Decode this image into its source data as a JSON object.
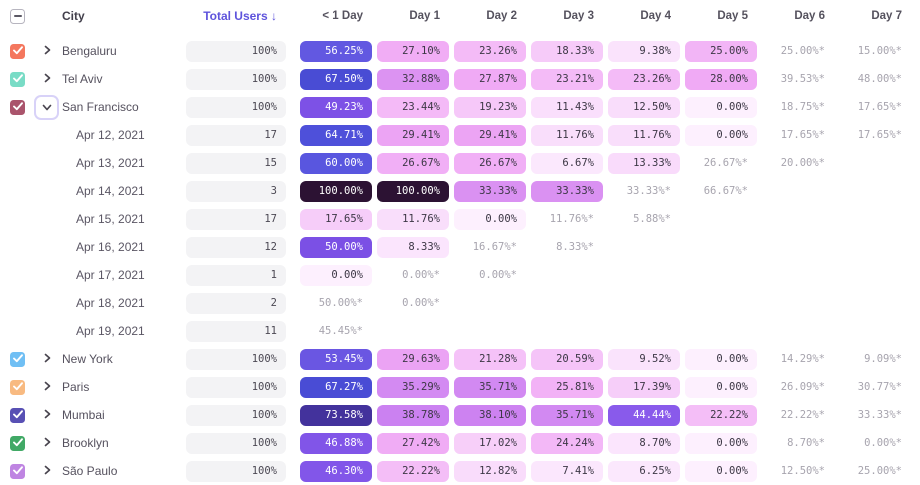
{
  "header": {
    "city_label": "City",
    "total_users_label": "Total Users ↓",
    "day_columns": [
      "< 1 Day",
      "Day 1",
      "Day 2",
      "Day 3",
      "Day 4",
      "Day 5",
      "Day 6",
      "Day 7"
    ]
  },
  "colors": {
    "sort_header_accent": "#5e53dc",
    "estimate_text": "#a7a4ae",
    "pill_background": "#f3f3f5",
    "focus_ring": "#d8d2f8",
    "scale_low": "#fdf0fe",
    "scale_mid": "#8558ea",
    "scale_high": "#2c1233"
  },
  "rows": [
    {
      "kind": "city",
      "label": "Bengaluru",
      "checkbox_color": "#f4775e",
      "chevron": "right",
      "total": "100%",
      "cells": [
        {
          "text": "56.25%",
          "pct": 56.25,
          "est": false
        },
        {
          "text": "27.10%",
          "pct": 27.1,
          "est": false
        },
        {
          "text": "23.26%",
          "pct": 23.26,
          "est": false
        },
        {
          "text": "18.33%",
          "pct": 18.33,
          "est": false
        },
        {
          "text": "9.38%",
          "pct": 9.38,
          "est": false
        },
        {
          "text": "25.00%",
          "pct": 25.0,
          "est": false
        },
        {
          "text": "25.00%*",
          "pct": 25.0,
          "est": true
        },
        {
          "text": "15.00%*",
          "pct": 15.0,
          "est": true
        }
      ]
    },
    {
      "kind": "city",
      "label": "Tel Aviv",
      "checkbox_color": "#79dcc6",
      "chevron": "right",
      "total": "100%",
      "cells": [
        {
          "text": "67.50%",
          "pct": 67.5,
          "est": false
        },
        {
          "text": "32.88%",
          "pct": 32.88,
          "est": false
        },
        {
          "text": "27.87%",
          "pct": 27.87,
          "est": false
        },
        {
          "text": "23.21%",
          "pct": 23.21,
          "est": false
        },
        {
          "text": "23.26%",
          "pct": 23.26,
          "est": false
        },
        {
          "text": "28.00%",
          "pct": 28.0,
          "est": false
        },
        {
          "text": "39.53%*",
          "pct": 39.53,
          "est": true
        },
        {
          "text": "48.00%*",
          "pct": 48.0,
          "est": true
        }
      ]
    },
    {
      "kind": "city",
      "label": "San Francisco",
      "checkbox_color": "#aa546c",
      "chevron": "down-focused",
      "total": "100%",
      "cells": [
        {
          "text": "49.23%",
          "pct": 49.23,
          "est": false
        },
        {
          "text": "23.44%",
          "pct": 23.44,
          "est": false
        },
        {
          "text": "19.23%",
          "pct": 19.23,
          "est": false
        },
        {
          "text": "11.43%",
          "pct": 11.43,
          "est": false
        },
        {
          "text": "12.50%",
          "pct": 12.5,
          "est": false
        },
        {
          "text": "0.00%",
          "pct": 0,
          "est": false
        },
        {
          "text": "18.75%*",
          "pct": 18.75,
          "est": true
        },
        {
          "text": "17.65%*",
          "pct": 17.65,
          "est": true
        }
      ]
    },
    {
      "kind": "date",
      "label": "Apr 12, 2021",
      "total": "17",
      "cells": [
        {
          "text": "64.71%",
          "pct": 64.71,
          "est": false
        },
        {
          "text": "29.41%",
          "pct": 29.41,
          "est": false
        },
        {
          "text": "29.41%",
          "pct": 29.41,
          "est": false
        },
        {
          "text": "11.76%",
          "pct": 11.76,
          "est": false
        },
        {
          "text": "11.76%",
          "pct": 11.76,
          "est": false
        },
        {
          "text": "0.00%",
          "pct": 0,
          "est": false
        },
        {
          "text": "17.65%*",
          "pct": 17.65,
          "est": true
        },
        {
          "text": "17.65%*",
          "pct": 17.65,
          "est": true
        }
      ]
    },
    {
      "kind": "date",
      "label": "Apr 13, 2021",
      "total": "15",
      "cells": [
        {
          "text": "60.00%",
          "pct": 60.0,
          "est": false
        },
        {
          "text": "26.67%",
          "pct": 26.67,
          "est": false
        },
        {
          "text": "26.67%",
          "pct": 26.67,
          "est": false
        },
        {
          "text": "6.67%",
          "pct": 6.67,
          "est": false
        },
        {
          "text": "13.33%",
          "pct": 13.33,
          "est": false
        },
        {
          "text": "26.67%*",
          "pct": 26.67,
          "est": true
        },
        {
          "text": "20.00%*",
          "pct": 20.0,
          "est": true
        },
        null
      ]
    },
    {
      "kind": "date",
      "label": "Apr 14, 2021",
      "total": "3",
      "cells": [
        {
          "text": "100.00%",
          "pct": 100,
          "est": false
        },
        {
          "text": "100.00%",
          "pct": 100,
          "est": false
        },
        {
          "text": "33.33%",
          "pct": 33.33,
          "est": false
        },
        {
          "text": "33.33%",
          "pct": 33.33,
          "est": false
        },
        {
          "text": "33.33%*",
          "pct": 33.33,
          "est": true
        },
        {
          "text": "66.67%*",
          "pct": 66.67,
          "est": true
        },
        null,
        null
      ]
    },
    {
      "kind": "date",
      "label": "Apr 15, 2021",
      "total": "17",
      "cells": [
        {
          "text": "17.65%",
          "pct": 17.65,
          "est": false
        },
        {
          "text": "11.76%",
          "pct": 11.76,
          "est": false
        },
        {
          "text": "0.00%",
          "pct": 0,
          "est": false
        },
        {
          "text": "11.76%*",
          "pct": 11.76,
          "est": true
        },
        {
          "text": "5.88%*",
          "pct": 5.88,
          "est": true
        },
        null,
        null,
        null
      ]
    },
    {
      "kind": "date",
      "label": "Apr 16, 2021",
      "total": "12",
      "cells": [
        {
          "text": "50.00%",
          "pct": 50.0,
          "est": false
        },
        {
          "text": "8.33%",
          "pct": 8.33,
          "est": false
        },
        {
          "text": "16.67%*",
          "pct": 16.67,
          "est": true
        },
        {
          "text": "8.33%*",
          "pct": 8.33,
          "est": true
        },
        null,
        null,
        null,
        null
      ]
    },
    {
      "kind": "date",
      "label": "Apr 17, 2021",
      "total": "1",
      "cells": [
        {
          "text": "0.00%",
          "pct": 0,
          "est": false
        },
        {
          "text": "0.00%*",
          "pct": 0,
          "est": true
        },
        {
          "text": "0.00%*",
          "pct": 0,
          "est": true
        },
        null,
        null,
        null,
        null,
        null
      ]
    },
    {
      "kind": "date",
      "label": "Apr 18, 2021",
      "total": "2",
      "cells": [
        {
          "text": "50.00%*",
          "pct": 50.0,
          "est": true
        },
        {
          "text": "0.00%*",
          "pct": 0,
          "est": true
        },
        null,
        null,
        null,
        null,
        null,
        null
      ]
    },
    {
      "kind": "date",
      "label": "Apr 19, 2021",
      "total": "11",
      "cells": [
        {
          "text": "45.45%*",
          "pct": 45.45,
          "est": true
        },
        null,
        null,
        null,
        null,
        null,
        null,
        null
      ]
    },
    {
      "kind": "city",
      "label": "New York",
      "checkbox_color": "#70bff4",
      "chevron": "right",
      "total": "100%",
      "cells": [
        {
          "text": "53.45%",
          "pct": 53.45,
          "est": false
        },
        {
          "text": "29.63%",
          "pct": 29.63,
          "est": false
        },
        {
          "text": "21.28%",
          "pct": 21.28,
          "est": false
        },
        {
          "text": "20.59%",
          "pct": 20.59,
          "est": false
        },
        {
          "text": "9.52%",
          "pct": 9.52,
          "est": false
        },
        {
          "text": "0.00%",
          "pct": 0,
          "est": false
        },
        {
          "text": "14.29%*",
          "pct": 14.29,
          "est": true
        },
        {
          "text": "9.09%*",
          "pct": 9.09,
          "est": true
        }
      ]
    },
    {
      "kind": "city",
      "label": "Paris",
      "checkbox_color": "#f8ba81",
      "chevron": "right",
      "total": "100%",
      "cells": [
        {
          "text": "67.27%",
          "pct": 67.27,
          "est": false
        },
        {
          "text": "35.29%",
          "pct": 35.29,
          "est": false
        },
        {
          "text": "35.71%",
          "pct": 35.71,
          "est": false
        },
        {
          "text": "25.81%",
          "pct": 25.81,
          "est": false
        },
        {
          "text": "17.39%",
          "pct": 17.39,
          "est": false
        },
        {
          "text": "0.00%",
          "pct": 0,
          "est": false
        },
        {
          "text": "26.09%*",
          "pct": 26.09,
          "est": true
        },
        {
          "text": "30.77%*",
          "pct": 30.77,
          "est": true
        }
      ]
    },
    {
      "kind": "city",
      "label": "Mumbai",
      "checkbox_color": "#5850b4",
      "chevron": "right",
      "total": "100%",
      "cells": [
        {
          "text": "73.58%",
          "pct": 73.58,
          "est": false
        },
        {
          "text": "38.78%",
          "pct": 38.78,
          "est": false
        },
        {
          "text": "38.10%",
          "pct": 38.1,
          "est": false
        },
        {
          "text": "35.71%",
          "pct": 35.71,
          "est": false
        },
        {
          "text": "44.44%",
          "pct": 44.44,
          "est": false
        },
        {
          "text": "22.22%",
          "pct": 22.22,
          "est": false
        },
        {
          "text": "22.22%*",
          "pct": 22.22,
          "est": true
        },
        {
          "text": "33.33%*",
          "pct": 33.33,
          "est": true
        }
      ]
    },
    {
      "kind": "city",
      "label": "Brooklyn",
      "checkbox_color": "#41a966",
      "chevron": "right",
      "total": "100%",
      "cells": [
        {
          "text": "46.88%",
          "pct": 46.88,
          "est": false
        },
        {
          "text": "27.42%",
          "pct": 27.42,
          "est": false
        },
        {
          "text": "17.02%",
          "pct": 17.02,
          "est": false
        },
        {
          "text": "24.24%",
          "pct": 24.24,
          "est": false
        },
        {
          "text": "8.70%",
          "pct": 8.7,
          "est": false
        },
        {
          "text": "0.00%",
          "pct": 0,
          "est": false
        },
        {
          "text": "8.70%*",
          "pct": 8.7,
          "est": true
        },
        {
          "text": "0.00%*",
          "pct": 0,
          "est": true
        }
      ]
    },
    {
      "kind": "city",
      "label": "São Paulo",
      "checkbox_color": "#bf85e2",
      "chevron": "right",
      "total": "100%",
      "cells": [
        {
          "text": "46.30%",
          "pct": 46.3,
          "est": false
        },
        {
          "text": "22.22%",
          "pct": 22.22,
          "est": false
        },
        {
          "text": "12.82%",
          "pct": 12.82,
          "est": false
        },
        {
          "text": "7.41%",
          "pct": 7.41,
          "est": false
        },
        {
          "text": "6.25%",
          "pct": 6.25,
          "est": false
        },
        {
          "text": "0.00%",
          "pct": 0,
          "est": false
        },
        {
          "text": "12.50%*",
          "pct": 12.5,
          "est": true
        },
        {
          "text": "25.00%*",
          "pct": 25.0,
          "est": true
        }
      ]
    }
  ]
}
